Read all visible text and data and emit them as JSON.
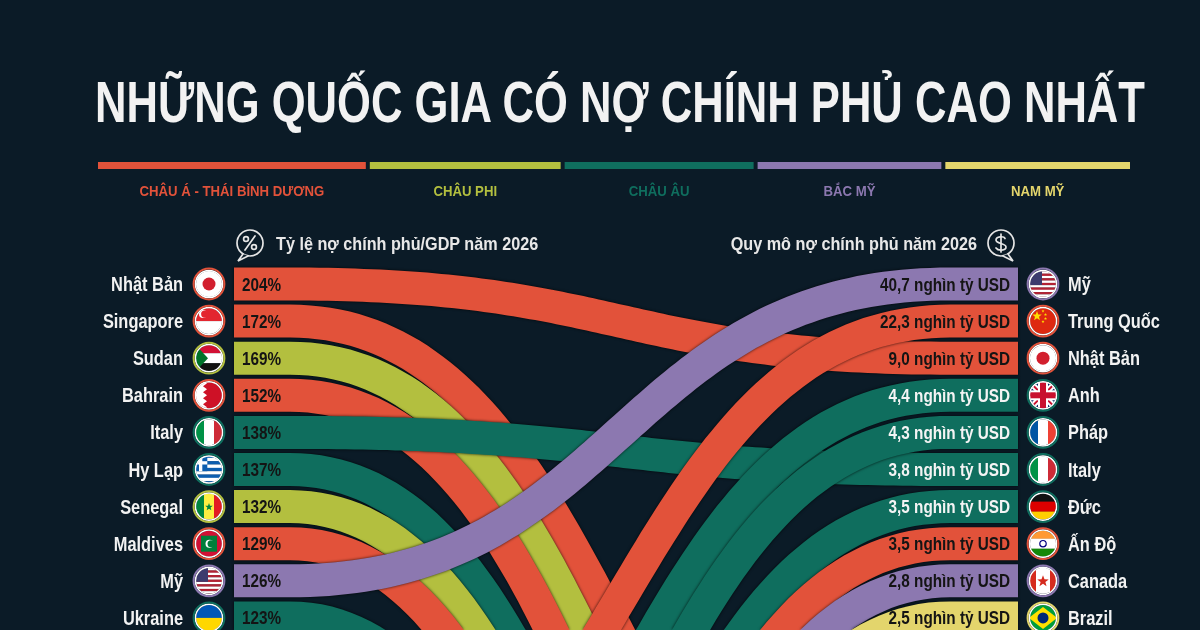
{
  "chart_data": [
    {
      "type": "other",
      "title": "NHỮNG QUỐC GIA CÓ NỢ CHÍNH PHỦ CAO NHẤT",
      "subtitle": "Tỷ lệ nợ chính phủ/GDP năm 2026",
      "legend": "top",
      "categories": [
        "Nhật Bản",
        "Singapore",
        "Sudan",
        "Bahrain",
        "Italy",
        "Hy Lạp",
        "Senegal",
        "Maldives",
        "Mỹ",
        "Ukraine"
      ],
      "series": [
        {
          "name": "CHÂU Á - THÁI BÌNH DƯƠNG",
          "color": "#e2523a",
          "values": [
            204,
            172,
            null,
            152,
            null,
            null,
            null,
            129,
            null,
            null
          ],
          "value_labels": [
            "204%",
            "172%",
            null,
            "152%",
            null,
            null,
            null,
            "129%",
            null,
            null
          ]
        },
        {
          "name": "CHÂU PHI",
          "color": "#b3bf3f",
          "values": [
            null,
            null,
            169,
            null,
            null,
            null,
            132,
            null,
            null,
            null
          ],
          "value_labels": [
            null,
            null,
            "169%",
            null,
            null,
            null,
            "132%",
            null,
            null,
            null
          ]
        },
        {
          "name": "CHÂU ÂU",
          "color": "#0f6e5e",
          "values": [
            null,
            null,
            null,
            null,
            138,
            137,
            null,
            null,
            null,
            123
          ],
          "value_labels": [
            null,
            null,
            null,
            null,
            "138%",
            "137%",
            null,
            null,
            null,
            "123%"
          ]
        },
        {
          "name": "BẮC MỸ",
          "color": "#8c78b0",
          "values": [
            null,
            null,
            null,
            null,
            null,
            null,
            null,
            null,
            126,
            null
          ],
          "value_labels": [
            null,
            null,
            null,
            null,
            null,
            null,
            null,
            null,
            "126%",
            null
          ]
        },
        {
          "name": "NAM MỸ",
          "color": "#e3d56c",
          "values": [
            null,
            null,
            null,
            null,
            null,
            null,
            null,
            null,
            null,
            null
          ],
          "value_labels": [
            null,
            null,
            null,
            null,
            null,
            null,
            null,
            null,
            null,
            null
          ]
        }
      ]
    },
    {
      "type": "other",
      "title": "Quy mô nợ chính phủ năm 2026",
      "categories": [
        "Mỹ",
        "Trung Quốc",
        "Nhật Bản",
        "Anh",
        "Pháp",
        "Italy",
        "Đức",
        "Ấn Độ",
        "Canada",
        "Brazil"
      ],
      "series": [
        {
          "color": "#e2523a",
          "values": [
            null,
            22.3,
            9.0,
            null,
            null,
            null,
            null,
            3.5,
            null,
            null
          ],
          "value_labels": [
            null,
            "22,3 nghìn tỷ USD",
            "9,0 nghìn tỷ USD",
            null,
            null,
            null,
            null,
            "3,5 nghìn tỷ USD",
            null,
            null
          ]
        },
        {
          "color": "#0f6e5e",
          "values": [
            null,
            null,
            null,
            4.4,
            4.3,
            3.8,
            3.5,
            null,
            null,
            null
          ],
          "value_labels": [
            null,
            null,
            null,
            "4,4 nghìn tỷ USD",
            "4,3 nghìn tỷ USD",
            "3,8 nghìn tỷ USD",
            "3,5 nghìn tỷ USD",
            null,
            null,
            null
          ]
        },
        {
          "color": "#8c78b0",
          "values": [
            40.7,
            null,
            null,
            null,
            null,
            null,
            null,
            null,
            2.8,
            null
          ],
          "value_labels": [
            "40,7 nghìn tỷ USD",
            null,
            null,
            null,
            null,
            null,
            null,
            null,
            "2,8 nghìn tỷ USD",
            null
          ]
        },
        {
          "color": "#e3d56c",
          "values": [
            null,
            null,
            null,
            null,
            null,
            null,
            null,
            null,
            null,
            2.5
          ],
          "value_labels": [
            null,
            null,
            null,
            null,
            null,
            null,
            null,
            null,
            null,
            "2,5 nghìn tỷ USD"
          ]
        }
      ]
    }
  ]
}
